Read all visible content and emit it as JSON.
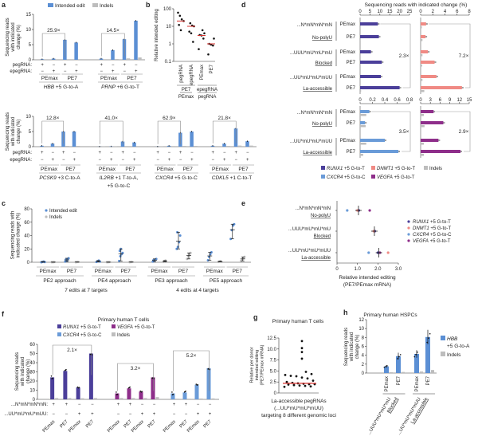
{
  "colors": {
    "intended": "#5b8fd4",
    "indels": "#bdbdbd",
    "RUNX1": "#4b3f9a",
    "DNMT1": "#f08a84",
    "CXCR4": "#6a9bd8",
    "VEGFA": "#8e2e8a",
    "median": "#d9302c",
    "points": "#111111"
  },
  "chart_data": [
    {
      "panel": "a",
      "type": "bar",
      "ylabel": "Sequencing reads with indicated change (%)",
      "legend": [
        "Intended edit",
        "Indels"
      ],
      "row_labels": [
        "pegRNA:",
        "epegRNA:"
      ],
      "rows": [
        {
          "ylim": [
            0,
            15
          ],
          "yticks": [
            "0",
            "5",
            "10",
            "15"
          ],
          "groups": [
            {
              "gene": "HBB",
              "edit": "+5 G-to-A",
              "fold": "25.9×",
              "editors": [
                "PEmax",
                "PE7"
              ],
              "conditions": [
                {
                  "pegRNA": "+",
                  "epegRNA": "−",
                  "intended": 0.2,
                  "indels": 0.05
                },
                {
                  "pegRNA": "−",
                  "epegRNA": "+",
                  "intended": 0.4,
                  "indels": 0.05
                },
                {
                  "pegRNA": "+",
                  "epegRNA": "−",
                  "intended": 6.6,
                  "indels": 0.05
                },
                {
                  "pegRNA": "−",
                  "epegRNA": "+",
                  "intended": 5.7,
                  "indels": 0.05
                }
              ]
            },
            {
              "gene": "PRNP",
              "edit": "+6 G-to-T",
              "fold": "14.5×",
              "editors": [
                "PEmax",
                "PE7"
              ],
              "conditions": [
                {
                  "pegRNA": "+",
                  "epegRNA": "−",
                  "intended": 0.4,
                  "indels": 0.05
                },
                {
                  "pegRNA": "−",
                  "epegRNA": "+",
                  "intended": 3.2,
                  "indels": 0.1
                },
                {
                  "pegRNA": "+",
                  "epegRNA": "−",
                  "intended": 6.8,
                  "indels": 0.3
                },
                {
                  "pegRNA": "−",
                  "epegRNA": "+",
                  "intended": 12.9,
                  "indels": 0.6
                }
              ]
            }
          ]
        },
        {
          "ylim": [
            0,
            10
          ],
          "yticks": [
            "0",
            "5",
            "10"
          ],
          "groups": [
            {
              "gene": "PCSK9",
              "edit": "+3 C-to-A",
              "fold": "12.8×",
              "editors": [
                "PEmax",
                "PE7"
              ],
              "conditions": [
                {
                  "pegRNA": "+",
                  "epegRNA": "−",
                  "intended": 0.3,
                  "indels": 0.05
                },
                {
                  "pegRNA": "−",
                  "epegRNA": "+",
                  "intended": 1.0,
                  "indels": 0.05
                },
                {
                  "pegRNA": "+",
                  "epegRNA": "−",
                  "intended": 5.0,
                  "indels": 0.1
                },
                {
                  "pegRNA": "−",
                  "epegRNA": "+",
                  "intended": 5.0,
                  "indels": 0.1
                }
              ]
            },
            {
              "gene": "IL2RB",
              "edit": "+1 T-to-A,",
              "edit2": "+5 G-to-C",
              "fold": "41.0×",
              "editors": [
                "PEmax",
                "PE7"
              ],
              "conditions": [
                {
                  "pegRNA": "+",
                  "epegRNA": "−",
                  "intended": 0.05,
                  "indels": 0.02
                },
                {
                  "pegRNA": "−",
                  "epegRNA": "+",
                  "intended": 0.1,
                  "indels": 0.02
                },
                {
                  "pegRNA": "+",
                  "epegRNA": "−",
                  "intended": 1.7,
                  "indels": 0.05
                },
                {
                  "pegRNA": "−",
                  "epegRNA": "+",
                  "intended": 1.4,
                  "indels": 0.05
                }
              ]
            },
            {
              "gene": "CXCR4",
              "edit": "+5 G-to-C",
              "fold": "62.9×",
              "editors": [
                "PEmax",
                "PE7"
              ],
              "conditions": [
                {
                  "pegRNA": "+",
                  "epegRNA": "−",
                  "intended": 0.05,
                  "indels": 0.02
                },
                {
                  "pegRNA": "−",
                  "epegRNA": "+",
                  "intended": 0.3,
                  "indels": 0.05
                },
                {
                  "pegRNA": "+",
                  "epegRNA": "−",
                  "intended": 4.6,
                  "indels": 0.1
                },
                {
                  "pegRNA": "−",
                  "epegRNA": "+",
                  "intended": 5.0,
                  "indels": 0.1
                }
              ]
            },
            {
              "gene": "CDKL5",
              "edit": "+1 C-to-T",
              "fold": "21.8×",
              "editors": [
                "PEmax",
                "PE7"
              ],
              "conditions": [
                {
                  "pegRNA": "+",
                  "epegRNA": "−",
                  "intended": 0.3,
                  "indels": 0.05
                },
                {
                  "pegRNA": "−",
                  "epegRNA": "+",
                  "intended": 1.0,
                  "indels": 0.1
                },
                {
                  "pegRNA": "+",
                  "epegRNA": "−",
                  "intended": 6.0,
                  "indels": 0.2
                },
                {
                  "pegRNA": "−",
                  "epegRNA": "+",
                  "intended": 1.8,
                  "indels": 0.2
                }
              ]
            }
          ]
        }
      ]
    },
    {
      "panel": "b",
      "type": "scatter",
      "ylabel": "Relative intended editing",
      "yscale": "log",
      "ylim": [
        0.1,
        100
      ],
      "yticks": [
        "0.1",
        "1",
        "10",
        "100"
      ],
      "categories": [
        "pegRNA",
        "epegRNA",
        "PEmax",
        "PE7"
      ],
      "group_labels": [
        {
          "top": "PE7",
          "bottom": "PEmax"
        },
        {
          "top": "epegRNA",
          "bottom": "pegRNA"
        }
      ],
      "values": [
        [
          60,
          40,
          25,
          20,
          12,
          6
        ],
        [
          15,
          11,
          10,
          5,
          4,
          1.3
        ],
        [
          6,
          4,
          3.2,
          3,
          2,
          0.5
        ],
        [
          2,
          1,
          0.9,
          0.8,
          0.25
        ]
      ],
      "medians": [
        20,
        10,
        3,
        1
      ]
    },
    {
      "panel": "c",
      "type": "scatter",
      "ylabel": "Sequencing reads with indicated change (%)",
      "ylim": [
        0,
        80
      ],
      "yticks": [
        "0",
        "20",
        "40",
        "60",
        "80"
      ],
      "legend": [
        "Intended edit",
        "Indels"
      ],
      "groups": [
        {
          "approach": "PE2 approach",
          "editors": [
            {
              "name": "PEmax",
              "intended": [
                0,
                0.5,
                1,
                0.3
              ],
              "indels": [
                0.1,
                0.2,
                0.3
              ]
            },
            {
              "name": "PE7",
              "intended": [
                1,
                3,
                5,
                6,
                4,
                2
              ],
              "indels": [
                0.2,
                0.3,
                0.4
              ]
            }
          ]
        },
        {
          "approach": "PE4 approach",
          "editors": [
            {
              "name": "PEmax",
              "intended": [
                0.5,
                1.5,
                2.5,
                1
              ],
              "indels": [
                0.1,
                0.2,
                0.3
              ]
            },
            {
              "name": "PE7",
              "intended": [
                2,
                9,
                12,
                14,
                17,
                20
              ],
              "indels": [
                0.2,
                0.3,
                0.4
              ]
            }
          ]
        },
        {
          "approach": "PE3 approach",
          "editors": [
            {
              "name": "PEmax",
              "intended": [
                1,
                2,
                4,
                5,
                3
              ],
              "indels": [
                0.5,
                1.5,
                2.5
              ]
            },
            {
              "name": "PE7",
              "intended": [
                20,
                23,
                30,
                40,
                45
              ],
              "indels": [
                5,
                9,
                12,
                14
              ]
            }
          ]
        },
        {
          "approach": "PE5 approach",
          "editors": [
            {
              "name": "PEmax",
              "intended": [
                3,
                8,
                12,
                15
              ],
              "indels": [
                0.5,
                1,
                1.5
              ]
            },
            {
              "name": "PE7",
              "intended": [
                35,
                48,
                55,
                57
              ],
              "indels": [
                2,
                4,
                6,
                8
              ]
            }
          ]
        }
      ],
      "summaries": [
        "7 edits at 7 targets",
        "4 edits at 4 targets"
      ]
    },
    {
      "panel": "d",
      "type": "bar",
      "xlabel": "Sequencing reads with indicated change (%)",
      "blocks": [
        {
          "series": [
            {
              "gene": "RUNX1",
              "xlim": [
                0,
                25
              ],
              "xticks": [
                "0",
                "5",
                "10",
                "15",
                "20",
                "25"
              ],
              "fold": "2.3×",
              "intended": [
                9,
                9.5,
                5.5,
                11,
                10.5,
                20
              ],
              "indels": [
                0.3,
                0.3,
                0.3,
                0.3,
                0.3,
                0.5
              ]
            },
            {
              "gene": "DNMT1",
              "xlim": [
                0,
                8
              ],
              "xticks": [
                "0",
                "2",
                "4",
                "6",
                "8"
              ],
              "fold": "7.2×",
              "intended": [
                0.9,
                0.8,
                1.2,
                2.3,
                2.6,
                6.8
              ],
              "indels": [
                0.2,
                0.3,
                0.3,
                0.25,
                0.3,
                0.6
              ]
            }
          ],
          "rows": [
            {
              "label": "...N*mN*mN*mN",
              "sub": "No-polyU"
            },
            {
              "label": "...UUU*mU*mU*mU",
              "sub": "Blocked"
            },
            {
              "label": "...UU*mU*mU*mUU",
              "sub": "La-accessible"
            }
          ]
        },
        {
          "series": [
            {
              "gene": "CXCR4",
              "xlim": [
                0,
                0.8
              ],
              "xticks": [
                "0",
                "0.2",
                "0.4",
                "0.6",
                "0.8"
              ],
              "fold": "3.5×",
              "intended": [
                0.15,
                0.08,
                0.4,
                0.62
              ],
              "indels": [
                0.1,
                0.09,
                0.1,
                0.05
              ]
            },
            {
              "gene": "VEGFA",
              "xlim": [
                0,
                15
              ],
              "xticks": [
                "0",
                "3",
                "6",
                "9",
                "12",
                "15"
              ],
              "fold": "2.9×",
              "intended": [
                4,
                7,
                5.5,
                12.3
              ],
              "indels": [
                1,
                1.2,
                1,
                1
              ]
            }
          ],
          "rows": [
            {
              "label": "...N*mN*mN*mN",
              "sub": "No-polyU"
            },
            {
              "label": "...UU*mU*mU*mUU",
              "sub": "La-accessible"
            }
          ]
        }
      ],
      "editors": [
        "PEmax",
        "PE7"
      ],
      "legend": [
        {
          "gene": "RUNX1",
          "edit": "+5 G-to-T"
        },
        {
          "gene": "DNMT1",
          "edit": "+5 G-to-T"
        },
        {
          "gene": "",
          "edit": "Indels"
        },
        {
          "gene": "CXCR4",
          "edit": "+5 G-to-C"
        },
        {
          "gene": "VEGFA",
          "edit": "+5 G-to-T"
        }
      ]
    },
    {
      "panel": "e",
      "type": "scatter",
      "xlabel": "Relative intended editing",
      "xlabel2": "(PE7/PEmax mRNA)",
      "xlim": [
        0,
        3
      ],
      "xticks": [
        "0",
        "1.0",
        "2.0",
        "3.0"
      ],
      "rows": [
        {
          "label": "...N*mN*mN*mN",
          "sub": "No-polyU",
          "points": {
            "RUNX1": 1.07,
            "DNMT1": 1.0,
            "CXCR4": 0.5,
            "VEGFA": 1.6
          },
          "mean": 1.05
        },
        {
          "label": "...UUU*mU*mU*mU",
          "sub": "Blocked",
          "points": {
            "RUNX1": 1.85,
            "DNMT1": 1.8
          },
          "mean": 1.83
        },
        {
          "label": "...UU*mU*mU*mUU",
          "sub": "La-accessible",
          "points": {
            "RUNX1": 2.0,
            "DNMT1": 2.5,
            "CXCR4": 1.55,
            "VEGFA": 2.1
          },
          "mean": 2.05
        }
      ],
      "legend": [
        {
          "gene": "RUNX1",
          "edit": "+5 G-to-T"
        },
        {
          "gene": "DNMT1",
          "edit": "+5 G-to-T"
        },
        {
          "gene": "CXCR4",
          "edit": "+5 G-to-C"
        },
        {
          "gene": "VEGFA",
          "edit": "+5 G-to-T"
        }
      ]
    },
    {
      "panel": "f",
      "type": "bar",
      "title": "Primary human T cells",
      "ylabel": "Sequencing reads with indicated change (%)",
      "ylim": [
        0,
        60
      ],
      "yticks": [
        "0",
        "10",
        "20",
        "30",
        "40",
        "50",
        "60"
      ],
      "legend": [
        {
          "gene": "RUNX1",
          "edit": "+5 G-to-T"
        },
        {
          "gene": "VEGFA",
          "edit": "+5 G-to-T"
        },
        {
          "gene": "CXCR4",
          "edit": "+5 G-to-C"
        },
        {
          "gene": "",
          "edit": "Indels"
        }
      ],
      "row_labels": [
        "...N*mN*mN*mN:",
        "...UU*mU*mU*mUU:"
      ],
      "editors": [
        "PEmax",
        "PE7",
        "PEmax",
        "PE7"
      ],
      "row1": [
        "+",
        "+",
        "−",
        "−"
      ],
      "row2": [
        "−",
        "−",
        "+",
        "+"
      ],
      "groups": [
        {
          "gene": "RUNX1",
          "fold": "2.1×",
          "intended": [
            24,
            31,
            13,
            50
          ],
          "indels": [
            1,
            1,
            0.8,
            1
          ]
        },
        {
          "gene": "VEGFA",
          "fold": "3.2×",
          "intended": [
            6.5,
            12,
            8.5,
            24
          ],
          "indels": [
            1,
            1,
            1,
            2
          ]
        },
        {
          "gene": "CXCR4",
          "fold": "5.2×",
          "intended": [
            6.5,
            7.5,
            16,
            34
          ],
          "indels": [
            0.3,
            0.3,
            0.5,
            0.6
          ]
        }
      ]
    },
    {
      "panel": "g",
      "type": "scatter",
      "title": "Primary human T cells",
      "ylabel": "Relative per donor intended editing (PE7/PEmax mRNA)",
      "ylim": [
        0,
        12.5
      ],
      "yticks": [
        "0",
        "2.5",
        "5.0",
        "7.5",
        "10.0",
        "12.5"
      ],
      "xlabel": "La-accessible pegRNAs",
      "xlabel2": "(...UU*mU*mU*mUU)",
      "xlabel3": "targeting 8 different genomic loci",
      "values": [
        11.8,
        10.2,
        9.3,
        7.8,
        4.8,
        4.3,
        4.1,
        3.9,
        3.8,
        3.5,
        3.3,
        2.8,
        2.5,
        2.3,
        2.2,
        2.1,
        2.0,
        2.0,
        1.9,
        1.8,
        1.7,
        1.6,
        1.5,
        1.4
      ],
      "median": 2.2
    },
    {
      "panel": "h",
      "type": "bar",
      "title": "Primary human HSPCs",
      "ylabel": "Sequencing reads with indicated change (%)",
      "ylim": [
        0,
        12
      ],
      "yticks": [
        "0",
        "2",
        "4",
        "6",
        "8",
        "10",
        "12"
      ],
      "legend": [
        {
          "gene": "HBB",
          "edit": "+5 G-to-A"
        },
        {
          "gene": "",
          "edit": "Indels"
        }
      ],
      "groups": [
        {
          "label": "...UUU*mU*mU*mU",
          "sub": "Blocked",
          "editors": [
            "PEmax",
            "PE7"
          ],
          "intended": [
            1.5,
            3.8
          ],
          "indels": [
            0.1,
            0.15
          ]
        },
        {
          "label": "...UU*mU*mU*mUU",
          "sub": "La-accessible",
          "editors": [
            "PEmax",
            "PE7"
          ],
          "intended": [
            4.3,
            8.1
          ],
          "indels": [
            0.25,
            0.6
          ]
        }
      ]
    }
  ]
}
